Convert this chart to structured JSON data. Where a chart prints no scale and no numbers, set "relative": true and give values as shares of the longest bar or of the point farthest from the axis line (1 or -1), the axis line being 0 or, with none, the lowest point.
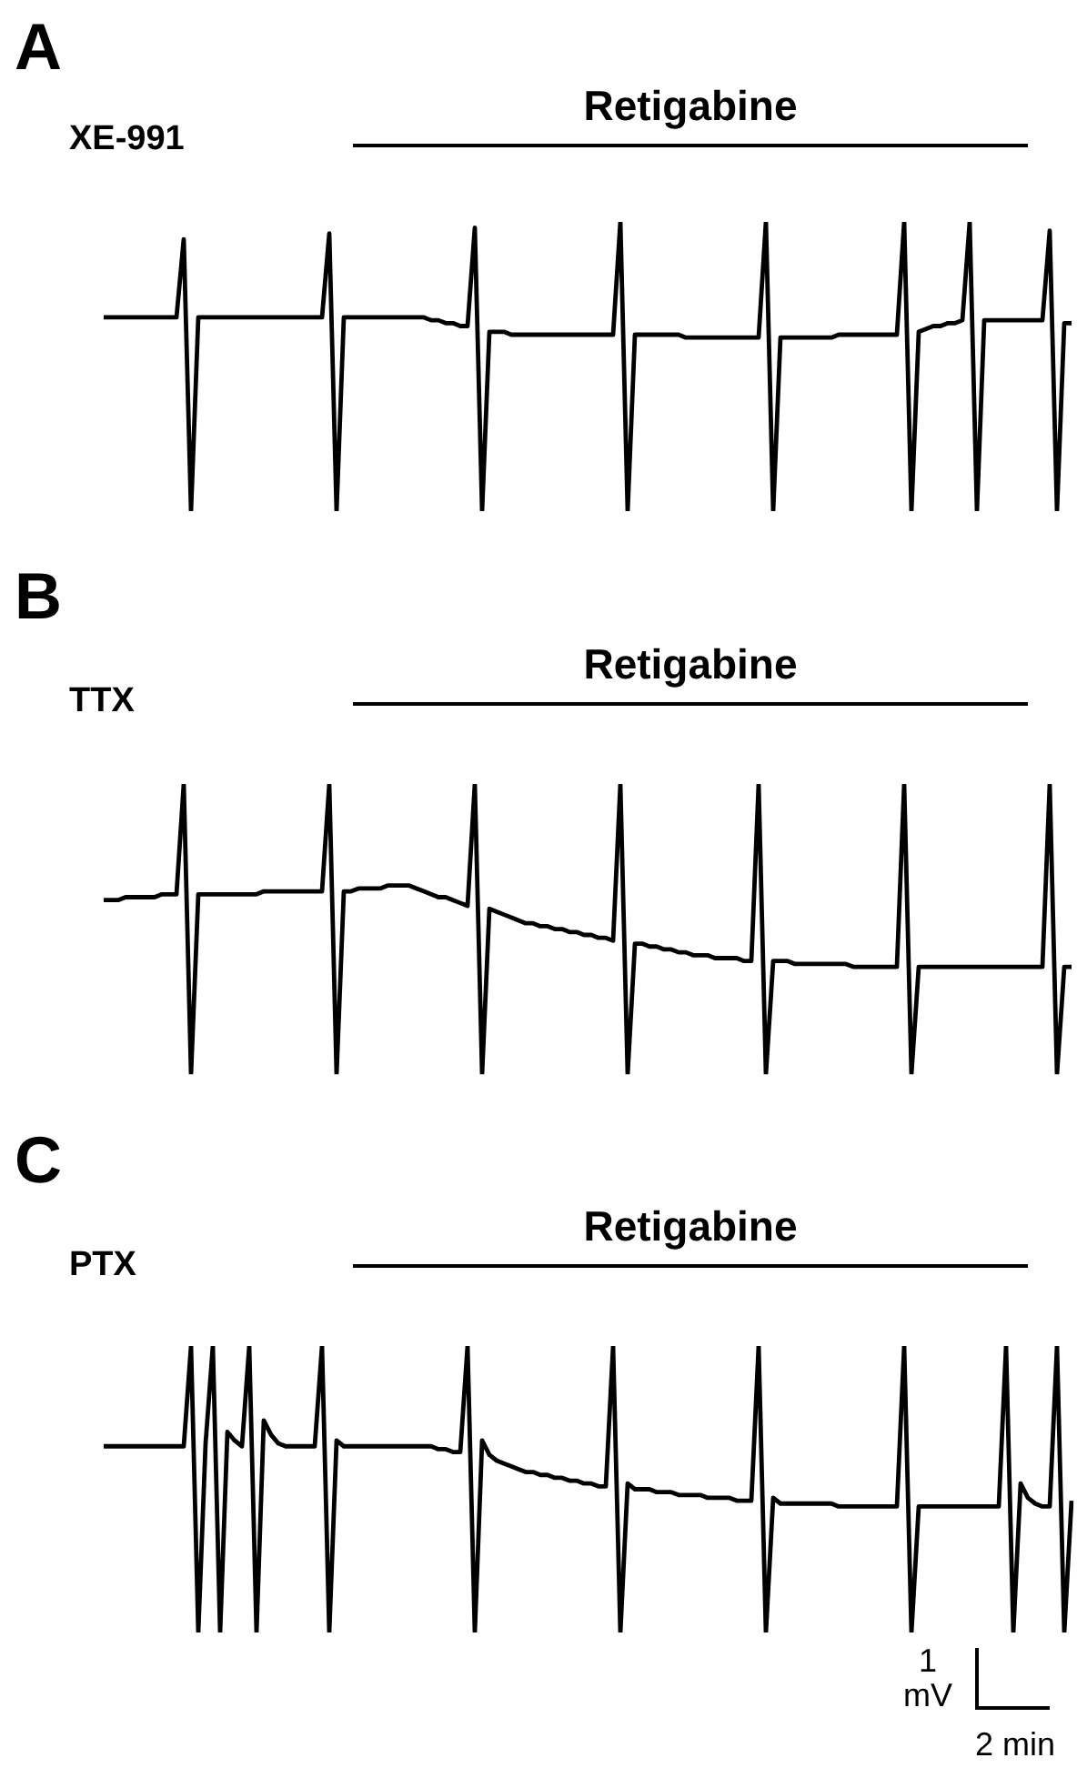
{
  "chart_data": [
    {
      "type": "line",
      "title": "A",
      "subtitle": "XE-991",
      "relative": true,
      "legend": false,
      "grid": false,
      "marker": "none",
      "annotations": [
        "Retigabine"
      ],
      "categories": [
        null,
        null,
        null,
        null,
        null,
        null,
        null,
        null,
        null,
        null,
        null,
        null,
        null,
        null,
        null,
        null,
        null,
        null,
        null,
        null,
        null,
        null,
        null,
        null,
        null,
        null,
        null,
        null,
        null,
        null,
        null,
        null,
        null,
        null,
        null,
        null,
        null,
        null,
        null,
        null,
        null,
        null,
        null,
        null,
        null,
        null,
        null,
        null,
        null,
        null,
        null,
        null,
        null,
        null,
        null,
        null,
        null,
        null,
        null,
        null,
        null,
        null,
        null,
        null,
        null,
        null,
        null,
        null,
        null,
        null,
        null,
        null,
        null,
        null,
        null,
        null,
        null,
        null,
        null,
        null,
        null,
        null,
        null,
        null,
        null,
        null,
        null,
        null,
        null,
        null,
        null,
        null,
        null,
        null,
        null,
        null,
        null,
        null,
        null,
        null,
        null,
        null,
        null,
        null,
        null,
        null,
        null,
        null,
        null,
        null,
        null,
        null,
        null,
        null,
        null,
        null,
        null,
        null,
        null,
        null,
        null,
        null,
        null,
        null,
        null,
        null,
        null,
        null,
        null,
        null,
        null,
        null,
        null,
        null
      ],
      "series": [
        {
          "color": "#000000",
          "values": [
            0.67,
            0.67,
            0.67,
            0.67,
            0.67,
            0.67,
            0.67,
            0.67,
            0.67,
            0.67,
            0.67,
            0.94,
            0,
            0.67,
            0.67,
            0.67,
            0.67,
            0.67,
            0.67,
            0.67,
            0.67,
            0.67,
            0.67,
            0.67,
            0.67,
            0.67,
            0.67,
            0.67,
            0.67,
            0.67,
            0.67,
            0.96,
            0,
            0.67,
            0.67,
            0.67,
            0.67,
            0.67,
            0.67,
            0.67,
            0.67,
            0.67,
            0.67,
            0.67,
            0.67,
            0.66,
            0.66,
            0.65,
            0.65,
            0.64,
            0.64,
            0.98,
            0,
            0.62,
            0.62,
            0.62,
            0.61,
            0.61,
            0.61,
            0.61,
            0.61,
            0.61,
            0.61,
            0.61,
            0.61,
            0.61,
            0.61,
            0.61,
            0.61,
            0.61,
            0.61,
            1,
            0,
            0.61,
            0.61,
            0.61,
            0.61,
            0.61,
            0.61,
            0.61,
            0.6,
            0.6,
            0.6,
            0.6,
            0.6,
            0.6,
            0.6,
            0.6,
            0.6,
            0.6,
            0.6,
            1,
            0,
            0.6,
            0.6,
            0.6,
            0.6,
            0.6,
            0.6,
            0.6,
            0.6,
            0.61,
            0.61,
            0.61,
            0.61,
            0.61,
            0.61,
            0.61,
            0.61,
            0.61,
            1,
            0,
            0.62,
            0.63,
            0.64,
            0.64,
            0.65,
            0.65,
            0.66,
            1,
            0,
            0.66,
            0.66,
            0.66,
            0.66,
            0.66,
            0.66,
            0.66,
            0.66,
            0.66,
            0.97,
            0,
            0.65,
            0.65
          ]
        }
      ]
    },
    {
      "type": "line",
      "title": "B",
      "subtitle": "TTX",
      "relative": true,
      "legend": false,
      "grid": false,
      "marker": "none",
      "annotations": [
        "Retigabine"
      ],
      "categories": [
        null,
        null,
        null,
        null,
        null,
        null,
        null,
        null,
        null,
        null,
        null,
        null,
        null,
        null,
        null,
        null,
        null,
        null,
        null,
        null,
        null,
        null,
        null,
        null,
        null,
        null,
        null,
        null,
        null,
        null,
        null,
        null,
        null,
        null,
        null,
        null,
        null,
        null,
        null,
        null,
        null,
        null,
        null,
        null,
        null,
        null,
        null,
        null,
        null,
        null,
        null,
        null,
        null,
        null,
        null,
        null,
        null,
        null,
        null,
        null,
        null,
        null,
        null,
        null,
        null,
        null,
        null,
        null,
        null,
        null,
        null,
        null,
        null,
        null,
        null,
        null,
        null,
        null,
        null,
        null,
        null,
        null,
        null,
        null,
        null,
        null,
        null,
        null,
        null,
        null,
        null,
        null,
        null,
        null,
        null,
        null,
        null,
        null,
        null,
        null,
        null,
        null,
        null,
        null,
        null,
        null,
        null,
        null,
        null,
        null,
        null,
        null,
        null,
        null,
        null,
        null,
        null,
        null,
        null,
        null,
        null,
        null,
        null,
        null,
        null,
        null,
        null,
        null,
        null,
        null,
        null,
        null,
        null,
        null
      ],
      "series": [
        {
          "color": "#000000",
          "values": [
            0.6,
            0.6,
            0.6,
            0.61,
            0.61,
            0.61,
            0.61,
            0.61,
            0.62,
            0.62,
            0.62,
            1,
            0,
            0.62,
            0.62,
            0.62,
            0.62,
            0.62,
            0.62,
            0.62,
            0.62,
            0.62,
            0.63,
            0.63,
            0.63,
            0.63,
            0.63,
            0.63,
            0.63,
            0.63,
            0.63,
            1,
            0,
            0.63,
            0.63,
            0.64,
            0.64,
            0.64,
            0.64,
            0.65,
            0.65,
            0.65,
            0.65,
            0.64,
            0.63,
            0.62,
            0.61,
            0.61,
            0.6,
            0.59,
            0.58,
            1,
            0,
            0.57,
            0.56,
            0.55,
            0.54,
            0.53,
            0.52,
            0.52,
            0.51,
            0.51,
            0.5,
            0.5,
            0.49,
            0.49,
            0.48,
            0.48,
            0.47,
            0.47,
            0.46,
            1,
            0,
            0.45,
            0.45,
            0.44,
            0.44,
            0.43,
            0.43,
            0.42,
            0.42,
            0.41,
            0.41,
            0.41,
            0.4,
            0.4,
            0.4,
            0.4,
            0.39,
            0.39,
            1,
            0,
            0.39,
            0.39,
            0.39,
            0.38,
            0.38,
            0.38,
            0.38,
            0.38,
            0.38,
            0.38,
            0.38,
            0.37,
            0.37,
            0.37,
            0.37,
            0.37,
            0.37,
            0.37,
            1,
            0,
            0.37,
            0.37,
            0.37,
            0.37,
            0.37,
            0.37,
            0.37,
            0.37,
            0.37,
            0.37,
            0.37,
            0.37,
            0.37,
            0.37,
            0.37,
            0.37,
            0.37,
            0.37,
            1,
            0,
            0.37,
            0.37
          ]
        }
      ]
    },
    {
      "type": "line",
      "title": "C",
      "subtitle": "PTX",
      "relative": true,
      "legend": false,
      "grid": false,
      "marker": "none",
      "annotations": [
        "Retigabine",
        "1 mV",
        "2 min"
      ],
      "categories": [
        null,
        null,
        null,
        null,
        null,
        null,
        null,
        null,
        null,
        null,
        null,
        null,
        null,
        null,
        null,
        null,
        null,
        null,
        null,
        null,
        null,
        null,
        null,
        null,
        null,
        null,
        null,
        null,
        null,
        null,
        null,
        null,
        null,
        null,
        null,
        null,
        null,
        null,
        null,
        null,
        null,
        null,
        null,
        null,
        null,
        null,
        null,
        null,
        null,
        null,
        null,
        null,
        null,
        null,
        null,
        null,
        null,
        null,
        null,
        null,
        null,
        null,
        null,
        null,
        null,
        null,
        null,
        null,
        null,
        null,
        null,
        null,
        null,
        null,
        null,
        null,
        null,
        null,
        null,
        null,
        null,
        null,
        null,
        null,
        null,
        null,
        null,
        null,
        null,
        null,
        null,
        null,
        null,
        null,
        null,
        null,
        null,
        null,
        null,
        null,
        null,
        null,
        null,
        null,
        null,
        null,
        null,
        null,
        null,
        null,
        null,
        null,
        null,
        null,
        null,
        null,
        null,
        null,
        null,
        null,
        null,
        null,
        null,
        null,
        null,
        null,
        null,
        null,
        null,
        null,
        null,
        null,
        null,
        null
      ],
      "series": [
        {
          "color": "#000000",
          "values": [
            0.65,
            0.65,
            0.65,
            0.65,
            0.65,
            0.65,
            0.65,
            0.65,
            0.65,
            0.65,
            0.65,
            0.65,
            1,
            0,
            0.66,
            1,
            0,
            0.7,
            0.67,
            0.65,
            1,
            0,
            0.74,
            0.69,
            0.66,
            0.65,
            0.65,
            0.65,
            0.65,
            0.65,
            1,
            0,
            0.67,
            0.65,
            0.65,
            0.65,
            0.65,
            0.65,
            0.65,
            0.65,
            0.65,
            0.65,
            0.65,
            0.65,
            0.65,
            0.65,
            0.64,
            0.64,
            0.63,
            0.63,
            1,
            0,
            0.67,
            0.62,
            0.6,
            0.59,
            0.58,
            0.57,
            0.56,
            0.56,
            0.55,
            0.55,
            0.54,
            0.54,
            0.53,
            0.53,
            0.52,
            0.52,
            0.51,
            0.51,
            1,
            0,
            0.52,
            0.5,
            0.5,
            0.5,
            0.49,
            0.49,
            0.49,
            0.48,
            0.48,
            0.48,
            0.48,
            0.47,
            0.47,
            0.47,
            0.47,
            0.46,
            0.46,
            0.46,
            1,
            0,
            0.47,
            0.45,
            0.45,
            0.45,
            0.45,
            0.45,
            0.45,
            0.45,
            0.45,
            0.44,
            0.44,
            0.44,
            0.44,
            0.44,
            0.44,
            0.44,
            0.44,
            0.44,
            1,
            0,
            0.44,
            0.44,
            0.44,
            0.44,
            0.44,
            0.44,
            0.44,
            0.44,
            0.44,
            0.44,
            0.44,
            0.44,
            1,
            0,
            0.52,
            0.47,
            0.45,
            0.44,
            0.44,
            1,
            0,
            0.46
          ]
        }
      ]
    }
  ]
}
